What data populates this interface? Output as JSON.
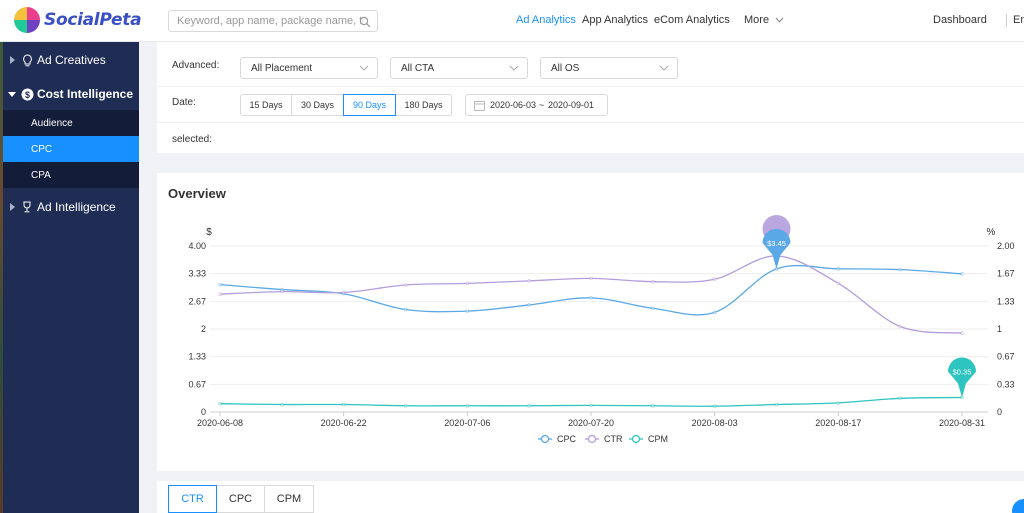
{
  "app": {
    "brand": "SocialPeta"
  },
  "search": {
    "placeholder": "Keyword, app name, package name, text c"
  },
  "nav": {
    "items": [
      "Ad Analytics",
      "App Analytics",
      "eCom Analytics"
    ],
    "more": "More",
    "dashboard": "Dashboard",
    "lang": "Eng"
  },
  "sidebar": {
    "ad_creatives": "Ad Creatives",
    "cost_intelligence": "Cost Intelligence",
    "sub": [
      "Audience",
      "CPC",
      "CPA"
    ],
    "ad_intelligence": "Ad Intelligence"
  },
  "filters": {
    "advanced_label": "Advanced:",
    "placement": "All Placement",
    "cta": "All CTA",
    "os": "All OS",
    "date_label": "Date:",
    "day_options": [
      "15 Days",
      "30 Days",
      "90 Days",
      "180 Days"
    ],
    "selected_day": "90 Days",
    "date_start": "2020-06-03",
    "date_sep": "~",
    "date_end": "2020-09-01",
    "selected_label": "selected:"
  },
  "overview": {
    "title": "Overview"
  },
  "colors": {
    "cpc": "#5aa9e6",
    "ctr": "#b39ddb",
    "cpm": "#2ec4bf",
    "accent": "#1890ff",
    "sidebar": "#1f2d55"
  },
  "chart_data": {
    "type": "line",
    "left_unit": "$",
    "right_unit": "%",
    "y_left_ticks": [
      "0",
      "0.67",
      "1.33",
      "2",
      "2.67",
      "3.33",
      "4.00"
    ],
    "y_right_ticks": [
      "0",
      "0.33",
      "0.67",
      "1",
      "1.33",
      "1.67",
      "2.00"
    ],
    "y_left_range": [
      0,
      4
    ],
    "y_right_range": [
      0,
      2
    ],
    "x_tick_labels": [
      "2020-06-08",
      "2020-06-22",
      "2020-07-06",
      "2020-07-20",
      "2020-08-03",
      "2020-08-17",
      "2020-08-31"
    ],
    "x": [
      "2020-06-08",
      "2020-06-15",
      "2020-06-22",
      "2020-06-29",
      "2020-07-06",
      "2020-07-13",
      "2020-07-20",
      "2020-07-27",
      "2020-08-03",
      "2020-08-10",
      "2020-08-17",
      "2020-08-24",
      "2020-08-31"
    ],
    "series": [
      {
        "name": "CPC",
        "axis": "left",
        "values": [
          3.07,
          2.95,
          2.85,
          2.47,
          2.43,
          2.58,
          2.75,
          2.5,
          2.4,
          3.45,
          3.45,
          3.43,
          3.33
        ]
      },
      {
        "name": "CTR",
        "axis": "right",
        "values": [
          1.42,
          1.45,
          1.44,
          1.53,
          1.55,
          1.58,
          1.61,
          1.57,
          1.6,
          1.88,
          1.55,
          1.03,
          0.95
        ]
      },
      {
        "name": "CPM",
        "axis": "left",
        "values": [
          0.2,
          0.18,
          0.18,
          0.15,
          0.15,
          0.15,
          0.16,
          0.15,
          0.14,
          0.18,
          0.22,
          0.33,
          0.35
        ]
      }
    ],
    "markers": [
      {
        "series": "CPC",
        "index": 9,
        "label": "$3.45"
      },
      {
        "series": "CPM",
        "index": 12,
        "label": "$0.35"
      }
    ],
    "grid": true,
    "legend": "bottom"
  },
  "bottom_tabs": [
    "CTR",
    "CPC",
    "CPM"
  ]
}
